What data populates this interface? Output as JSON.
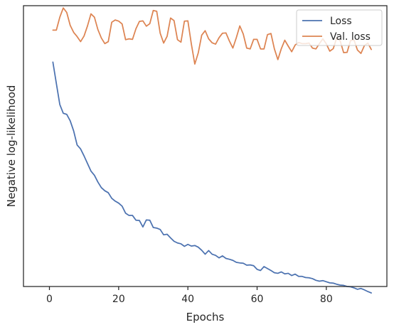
{
  "chart_data": {
    "type": "line",
    "title": "",
    "xlabel": "Epochs",
    "ylabel": "Negative log-likelihood",
    "xlim": [
      -7.5,
      97.5
    ],
    "ylim": [
      0,
      100
    ],
    "x_ticks": [
      0,
      20,
      40,
      60,
      80
    ],
    "y_ticks_visible": false,
    "grid": false,
    "legend": {
      "placement": "upper right"
    },
    "colors": {
      "loss": "#4c72b0",
      "val_loss": "#dd8452",
      "axes": "#262626"
    },
    "series": [
      {
        "name": "Loss",
        "color": "#4c72b0",
        "x": [
          1,
          2,
          3,
          4,
          5,
          6,
          7,
          8,
          9,
          10,
          11,
          12,
          13,
          14,
          15,
          16,
          17,
          18,
          19,
          20,
          21,
          22,
          23,
          24,
          25,
          26,
          27,
          28,
          29,
          30,
          31,
          32,
          33,
          34,
          35,
          36,
          37,
          38,
          39,
          40,
          41,
          42,
          43,
          44,
          45,
          46,
          47,
          48,
          49,
          50,
          51,
          52,
          53,
          54,
          55,
          56,
          57,
          58,
          59,
          60,
          61,
          62,
          63,
          64,
          65,
          66,
          67,
          68,
          69,
          70,
          71,
          72,
          73,
          74,
          75,
          76,
          77,
          78,
          79,
          80,
          81,
          82,
          83,
          84,
          85,
          86,
          87,
          88,
          89,
          90,
          91,
          92,
          93
        ],
        "values": [
          79.9,
          72.3,
          64.8,
          61.7,
          61.3,
          59.0,
          55.4,
          50.4,
          49.0,
          46.5,
          43.8,
          41.1,
          39.6,
          37.2,
          35.2,
          34.1,
          33.4,
          31.4,
          30.4,
          29.7,
          28.6,
          26.1,
          25.3,
          25.3,
          23.6,
          23.5,
          21.2,
          23.7,
          23.6,
          21.0,
          20.8,
          20.3,
          18.4,
          18.6,
          17.3,
          16.1,
          15.5,
          15.2,
          14.3,
          15.0,
          14.4,
          14.6,
          14.0,
          12.9,
          11.5,
          12.8,
          11.5,
          11.1,
          10.2,
          10.9,
          10.0,
          9.7,
          9.3,
          8.6,
          8.4,
          8.3,
          7.6,
          7.7,
          7.4,
          6.1,
          5.7,
          7.1,
          6.4,
          5.7,
          4.9,
          4.7,
          5.2,
          4.5,
          4.7,
          3.9,
          4.4,
          3.6,
          3.6,
          3.2,
          3.1,
          2.8,
          2.2,
          1.9,
          2.1,
          1.7,
          1.3,
          1.2,
          0.8,
          0.5,
          0.4,
          0.0,
          -0.1,
          -0.5,
          -1.0,
          -0.7,
          -1.2,
          -1.8,
          -2.3
        ]
      },
      {
        "name": "Val. loss",
        "color": "#dd8452",
        "x": [
          1,
          2,
          3,
          4,
          5,
          6,
          7,
          8,
          9,
          10,
          11,
          12,
          13,
          14,
          15,
          16,
          17,
          18,
          19,
          20,
          21,
          22,
          23,
          24,
          25,
          26,
          27,
          28,
          29,
          30,
          31,
          32,
          33,
          34,
          35,
          36,
          37,
          38,
          39,
          40,
          41,
          42,
          43,
          44,
          45,
          46,
          47,
          48,
          49,
          50,
          51,
          52,
          53,
          54,
          55,
          56,
          57,
          58,
          59,
          60,
          61,
          62,
          63,
          64,
          65,
          66,
          67,
          68,
          69,
          70,
          71,
          72,
          73,
          74,
          75,
          76,
          77,
          78,
          79,
          80,
          81,
          82,
          83,
          84,
          85,
          86,
          87,
          88,
          89,
          90,
          91,
          92,
          93
        ],
        "values": [
          91.3,
          91.3,
          95.9,
          99.2,
          97.6,
          93.0,
          90.5,
          89.0,
          87.2,
          89.2,
          92.8,
          97.1,
          95.9,
          91.5,
          88.5,
          86.5,
          87.2,
          94.1,
          94.9,
          94.5,
          93.5,
          87.9,
          88.2,
          88.0,
          91.8,
          94.4,
          94.6,
          92.7,
          93.6,
          98.3,
          98.0,
          90.2,
          86.7,
          89.1,
          95.6,
          94.7,
          87.9,
          87.0,
          94.5,
          94.6,
          86.4,
          79.2,
          83.2,
          89.5,
          91.1,
          88.2,
          86.8,
          86.3,
          88.6,
          90.2,
          90.3,
          87.4,
          84.9,
          88.6,
          92.8,
          89.9,
          84.9,
          84.6,
          88.0,
          88.0,
          84.6,
          84.6,
          89.7,
          90.1,
          84.6,
          80.8,
          84.7,
          87.7,
          85.6,
          83.6,
          86.0,
          86.9,
          86.5,
          86.5,
          86.7,
          84.9,
          84.6,
          86.5,
          88.2,
          86.4,
          83.8,
          84.7,
          88.5,
          87.5,
          83.3,
          83.4,
          87.6,
          87.8,
          84.2,
          83.0,
          85.8,
          86.7,
          84.4
        ]
      }
    ]
  }
}
